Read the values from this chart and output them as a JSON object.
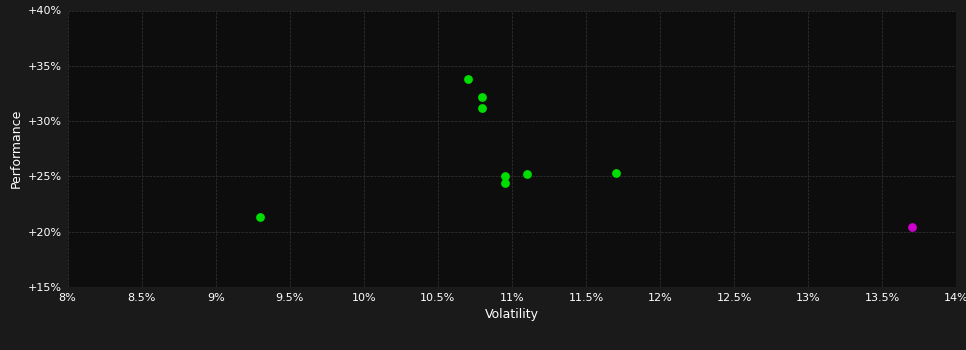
{
  "background_color": "#1a1a1a",
  "plot_bg_color": "#0d0d0d",
  "grid_color": "#3a3a3a",
  "text_color": "#ffffff",
  "xlabel": "Volatility",
  "ylabel": "Performance",
  "xlim": [
    0.08,
    0.14
  ],
  "ylim": [
    0.15,
    0.4
  ],
  "xticks": [
    0.08,
    0.085,
    0.09,
    0.095,
    0.1,
    0.105,
    0.11,
    0.115,
    0.12,
    0.125,
    0.13,
    0.135,
    0.14
  ],
  "yticks": [
    0.15,
    0.2,
    0.25,
    0.3,
    0.35,
    0.4
  ],
  "green_points": [
    [
      0.107,
      0.338
    ],
    [
      0.108,
      0.322
    ],
    [
      0.108,
      0.312
    ],
    [
      0.093,
      0.213
    ],
    [
      0.1095,
      0.25
    ],
    [
      0.1095,
      0.244
    ],
    [
      0.111,
      0.252
    ],
    [
      0.117,
      0.253
    ]
  ],
  "magenta_points": [
    [
      0.137,
      0.204
    ]
  ],
  "green_color": "#00dd00",
  "magenta_color": "#cc00cc",
  "marker_size": 40
}
